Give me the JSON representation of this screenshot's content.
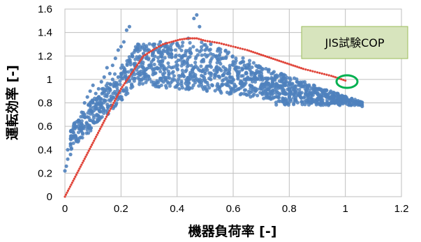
{
  "chart_data": {
    "type": "scatter",
    "xlabel": "機器負荷率 [-]",
    "ylabel": "運転効率 [-]",
    "xlim": [
      0,
      1.2
    ],
    "ylim": [
      0,
      1.6
    ],
    "x_ticks": [
      "0",
      "0.2",
      "0.4",
      "0.6",
      "0.8",
      "1",
      "1.2"
    ],
    "y_ticks": [
      "0",
      "0.2",
      "0.4",
      "0.6",
      "0.8",
      "1",
      "1.2",
      "1.4",
      "1.6"
    ],
    "grid": "major gridlines on both axes",
    "annotation": {
      "text": "JIS試験COP",
      "box_fill": "#d7e4bd",
      "box_border": "#9bbb59",
      "marker_point": [
        1.0,
        0.99
      ],
      "marker_color": "#00b050"
    },
    "series": [
      {
        "style": "scatter",
        "color": "#4f81bd",
        "cloud_description": "dense cloud of measurement points",
        "points": [
          [
            0.0,
            0.22
          ],
          [
            0.005,
            0.26
          ],
          [
            0.01,
            0.32
          ],
          [
            0.01,
            0.4
          ],
          [
            0.02,
            0.36
          ],
          [
            0.02,
            0.45
          ],
          [
            0.03,
            0.5
          ],
          [
            0.03,
            0.55
          ],
          [
            0.04,
            0.48
          ],
          [
            0.04,
            0.6
          ],
          [
            0.05,
            0.58
          ],
          [
            0.05,
            0.65
          ],
          [
            0.06,
            0.62
          ],
          [
            0.06,
            0.72
          ],
          [
            0.07,
            0.7
          ],
          [
            0.07,
            0.8
          ],
          [
            0.08,
            0.68
          ],
          [
            0.08,
            0.85
          ],
          [
            0.09,
            0.78
          ],
          [
            0.09,
            0.9
          ],
          [
            0.1,
            0.82
          ],
          [
            0.1,
            0.95
          ],
          [
            0.11,
            0.75
          ],
          [
            0.11,
            0.88
          ],
          [
            0.12,
            0.85
          ],
          [
            0.12,
            0.92
          ],
          [
            0.13,
            0.8
          ],
          [
            0.13,
            0.98
          ],
          [
            0.14,
            0.9
          ],
          [
            0.14,
            1.02
          ],
          [
            0.15,
            0.87
          ],
          [
            0.15,
            1.1
          ],
          [
            0.16,
            0.92
          ],
          [
            0.16,
            1.05
          ],
          [
            0.17,
            1.0
          ],
          [
            0.17,
            1.12
          ],
          [
            0.18,
            0.95
          ],
          [
            0.18,
            1.18
          ],
          [
            0.19,
            1.02
          ],
          [
            0.19,
            1.25
          ],
          [
            0.2,
            1.05
          ],
          [
            0.2,
            1.28
          ],
          [
            0.21,
            1.1
          ],
          [
            0.21,
            1.32
          ],
          [
            0.22,
            1.0
          ],
          [
            0.22,
            1.42
          ],
          [
            0.23,
            1.15
          ],
          [
            0.23,
            1.45
          ],
          [
            0.24,
            1.08
          ],
          [
            0.24,
            1.2
          ],
          [
            0.25,
            1.12
          ],
          [
            0.25,
            1.25
          ],
          [
            0.26,
            1.05
          ],
          [
            0.26,
            1.3
          ],
          [
            0.27,
            1.15
          ],
          [
            0.28,
            1.1
          ],
          [
            0.28,
            1.22
          ],
          [
            0.29,
            1.18
          ],
          [
            0.3,
            1.12
          ],
          [
            0.3,
            1.25
          ],
          [
            0.32,
            1.05
          ],
          [
            0.32,
            1.3
          ],
          [
            0.34,
            1.15
          ],
          [
            0.34,
            1.32
          ],
          [
            0.36,
            1.0
          ],
          [
            0.36,
            1.28
          ],
          [
            0.38,
            1.1
          ],
          [
            0.38,
            1.25
          ],
          [
            0.4,
            0.95
          ],
          [
            0.4,
            1.3
          ],
          [
            0.42,
            1.05
          ],
          [
            0.42,
            1.2
          ],
          [
            0.44,
            1.0
          ],
          [
            0.44,
            1.35
          ],
          [
            0.46,
            1.1
          ],
          [
            0.46,
            1.52
          ],
          [
            0.47,
            1.55
          ],
          [
            0.48,
            1.45
          ],
          [
            0.5,
            1.05
          ],
          [
            0.5,
            1.25
          ],
          [
            0.52,
            1.0
          ],
          [
            0.52,
            1.3
          ],
          [
            0.54,
            1.1
          ],
          [
            0.54,
            1.2
          ],
          [
            0.56,
            0.95
          ],
          [
            0.56,
            1.18
          ],
          [
            0.58,
            1.05
          ],
          [
            0.58,
            1.22
          ],
          [
            0.6,
            1.0
          ],
          [
            0.6,
            1.15
          ],
          [
            0.62,
            0.92
          ],
          [
            0.62,
            1.1
          ],
          [
            0.64,
            1.0
          ],
          [
            0.64,
            1.12
          ],
          [
            0.66,
            0.95
          ],
          [
            0.66,
            1.08
          ],
          [
            0.68,
            0.9
          ],
          [
            0.68,
            1.05
          ],
          [
            0.7,
            0.92
          ],
          [
            0.7,
            1.02
          ],
          [
            0.72,
            0.88
          ],
          [
            0.72,
            1.0
          ],
          [
            0.74,
            0.9
          ],
          [
            0.74,
            0.98
          ],
          [
            0.76,
            0.85
          ],
          [
            0.76,
            0.95
          ],
          [
            0.78,
            0.88
          ],
          [
            0.78,
            0.96
          ],
          [
            0.8,
            0.85
          ],
          [
            0.8,
            0.92
          ],
          [
            0.82,
            0.82
          ],
          [
            0.82,
            0.9
          ],
          [
            0.84,
            0.85
          ],
          [
            0.84,
            0.88
          ],
          [
            0.86,
            0.82
          ],
          [
            0.86,
            0.9
          ],
          [
            0.88,
            0.8
          ],
          [
            0.88,
            0.87
          ],
          [
            0.9,
            0.82
          ],
          [
            0.9,
            0.88
          ],
          [
            0.92,
            0.8
          ],
          [
            0.92,
            0.86
          ],
          [
            0.94,
            0.78
          ],
          [
            0.94,
            0.85
          ],
          [
            0.96,
            0.8
          ],
          [
            0.96,
            0.86
          ],
          [
            0.98,
            0.78
          ],
          [
            0.98,
            0.84
          ],
          [
            1.0,
            0.8
          ],
          [
            1.0,
            0.85
          ],
          [
            1.02,
            0.78
          ],
          [
            1.02,
            0.82
          ],
          [
            1.04,
            0.8
          ],
          [
            1.06,
            0.77
          ]
        ]
      },
      {
        "style": "dotted-line",
        "color": "#e0453a",
        "points": [
          [
            0.0,
            0.0
          ],
          [
            0.1,
            0.46
          ],
          [
            0.2,
            0.92
          ],
          [
            0.28,
            1.2
          ],
          [
            0.3,
            1.23
          ],
          [
            0.32,
            1.26
          ],
          [
            0.35,
            1.3
          ],
          [
            0.38,
            1.32
          ],
          [
            0.41,
            1.34
          ],
          [
            0.44,
            1.35
          ],
          [
            0.47,
            1.35
          ],
          [
            0.5,
            1.33
          ],
          [
            0.55,
            1.31
          ],
          [
            0.6,
            1.28
          ],
          [
            0.65,
            1.25
          ],
          [
            0.7,
            1.21
          ],
          [
            0.75,
            1.17
          ],
          [
            0.8,
            1.13
          ],
          [
            0.85,
            1.09
          ],
          [
            0.9,
            1.06
          ],
          [
            0.95,
            1.03
          ],
          [
            1.0,
            0.99
          ]
        ]
      }
    ]
  }
}
